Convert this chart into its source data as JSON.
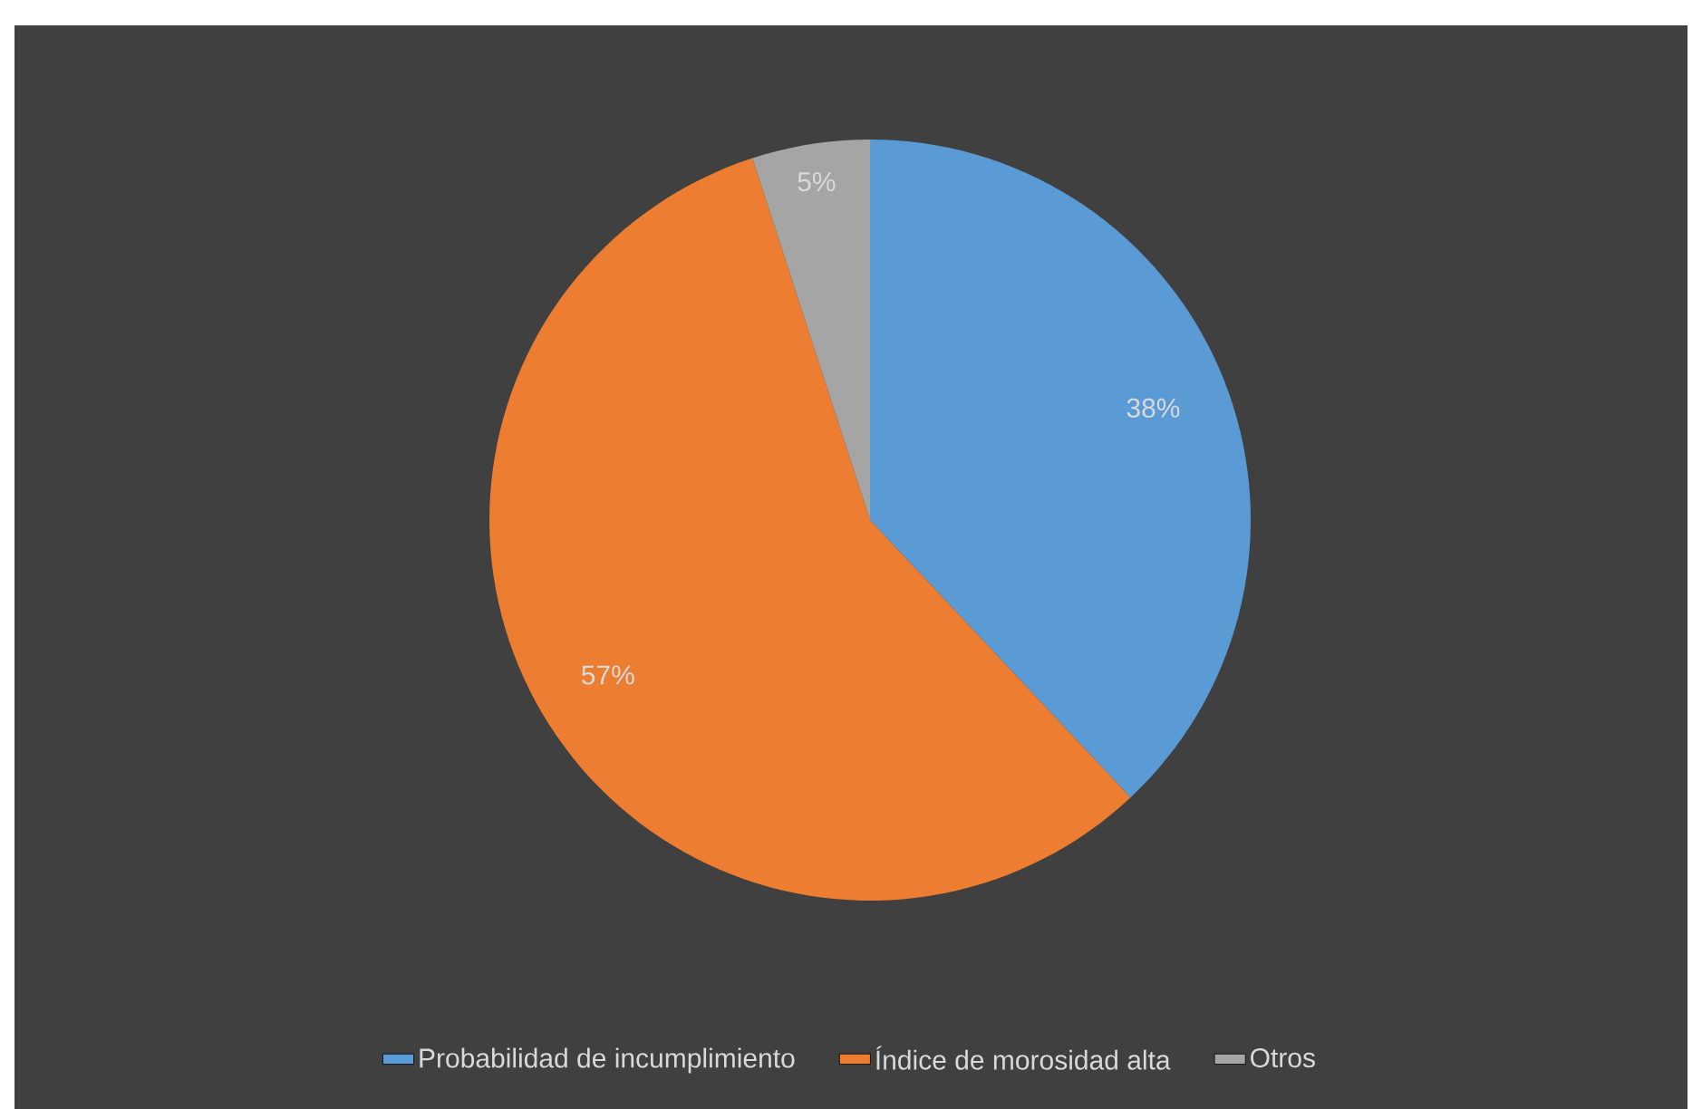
{
  "chart_data": {
    "type": "pie",
    "categories": [
      "Probabilidad de incumplimiento",
      "Índice de morosidad alta",
      "Otros"
    ],
    "values": [
      38,
      57,
      5
    ],
    "colors": [
      "#5b9bd5",
      "#ed7d31",
      "#a5a5a5"
    ],
    "value_labels": [
      "38%",
      "57%",
      "5%"
    ],
    "legend": "bottom"
  }
}
